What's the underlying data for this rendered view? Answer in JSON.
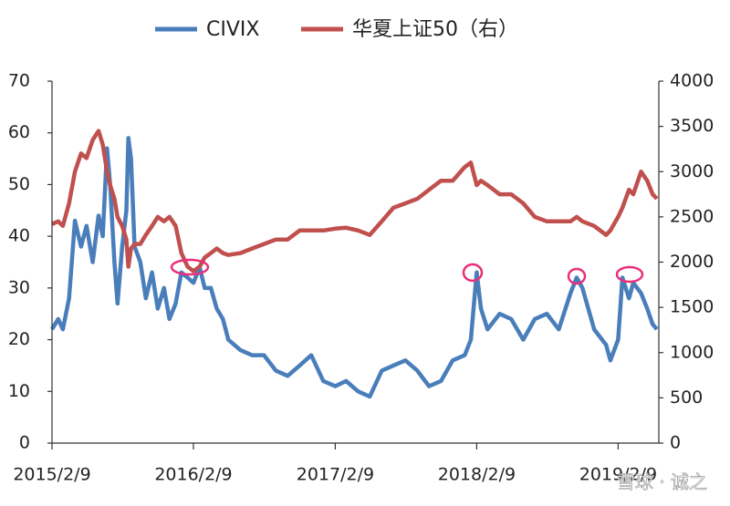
{
  "chart_data": {
    "type": "line",
    "x": [
      "2015/2/9",
      "2015/2/25",
      "2015/3/9",
      "2015/3/25",
      "2015/4/9",
      "2015/4/25",
      "2015/5/9",
      "2015/5/25",
      "2015/6/9",
      "2015/6/20",
      "2015/7/1",
      "2015/7/9",
      "2015/7/20",
      "2015/7/28",
      "2015/8/9",
      "2015/8/20",
      "2015/8/25",
      "2015/9/1",
      "2015/9/10",
      "2015/9/25",
      "2015/10/9",
      "2015/10/25",
      "2015/11/9",
      "2015/11/25",
      "2015/12/9",
      "2015/12/25",
      "2016/1/9",
      "2016/1/25",
      "2016/2/9",
      "2016/2/25",
      "2016/3/9",
      "2016/3/25",
      "2016/4/9",
      "2016/4/25",
      "2016/5/9",
      "2016/6/9",
      "2016/7/9",
      "2016/8/9",
      "2016/9/9",
      "2016/10/9",
      "2016/11/9",
      "2016/12/9",
      "2017/1/9",
      "2017/2/9",
      "2017/3/9",
      "2017/4/9",
      "2017/5/9",
      "2017/6/9",
      "2017/7/9",
      "2017/8/9",
      "2017/9/9",
      "2017/10/9",
      "2017/11/9",
      "2017/12/9",
      "2018/1/9",
      "2018/1/25",
      "2018/2/9",
      "2018/2/20",
      "2018/3/9",
      "2018/4/9",
      "2018/5/9",
      "2018/6/9",
      "2018/7/9",
      "2018/8/9",
      "2018/9/9",
      "2018/10/9",
      "2018/10/25",
      "2018/11/9",
      "2018/12/9",
      "2019/1/9",
      "2019/1/20",
      "2019/2/9",
      "2019/2/20",
      "2019/3/9",
      "2019/3/20",
      "2019/4/9",
      "2019/4/25",
      "2019/5/9",
      "2019/5/20"
    ],
    "series": [
      {
        "name": "CIVIX",
        "color": "#4a7ebb",
        "axis": "y",
        "values": [
          22,
          24,
          22,
          28,
          43,
          38,
          42,
          35,
          44,
          40,
          57,
          50,
          35,
          27,
          38,
          45,
          59,
          55,
          38,
          35,
          28,
          33,
          26,
          30,
          24,
          27,
          33,
          32,
          31,
          34,
          30,
          30,
          26,
          24,
          20,
          18,
          17,
          17,
          14,
          13,
          15,
          17,
          12,
          11,
          12,
          10,
          9,
          14,
          15,
          16,
          14,
          11,
          12,
          16,
          17,
          20,
          33,
          26,
          22,
          25,
          24,
          20,
          24,
          25,
          22,
          29,
          32,
          30,
          22,
          19,
          16,
          20,
          32,
          28,
          31,
          29,
          26,
          23,
          22
        ]
      },
      {
        "name": "华夏上证50（右）",
        "color": "#c0504d",
        "axis": "y2",
        "values": [
          2420,
          2450,
          2400,
          2650,
          3000,
          3200,
          3150,
          3350,
          3450,
          3300,
          3000,
          2850,
          2700,
          2500,
          2400,
          2250,
          1950,
          2150,
          2200,
          2200,
          2300,
          2400,
          2500,
          2450,
          2500,
          2400,
          2100,
          1950,
          1900,
          1950,
          2050,
          2100,
          2150,
          2100,
          2080,
          2100,
          2150,
          2200,
          2250,
          2250,
          2350,
          2350,
          2350,
          2370,
          2380,
          2350,
          2300,
          2450,
          2600,
          2650,
          2700,
          2800,
          2900,
          2900,
          3050,
          3100,
          2850,
          2900,
          2850,
          2750,
          2750,
          2650,
          2500,
          2450,
          2450,
          2450,
          2500,
          2450,
          2400,
          2300,
          2350,
          2500,
          2600,
          2800,
          2750,
          3000,
          2900,
          2750,
          2700
        ]
      }
    ],
    "xlim": [
      "2015/2/9",
      "2019/5/25"
    ],
    "xticks": [
      "2015/2/9",
      "2016/2/9",
      "2017/2/9",
      "2018/2/9",
      "2019/2/9"
    ],
    "ylim": [
      0,
      70
    ],
    "yticks": [
      0,
      10,
      20,
      30,
      40,
      50,
      60,
      70
    ],
    "y2lim": [
      0,
      4000
    ],
    "y2ticks": [
      0,
      500,
      1000,
      1500,
      2000,
      2500,
      3000,
      3500,
      4000
    ],
    "grid": false,
    "legend": "top",
    "watermark": "雪球 · 诚之"
  }
}
